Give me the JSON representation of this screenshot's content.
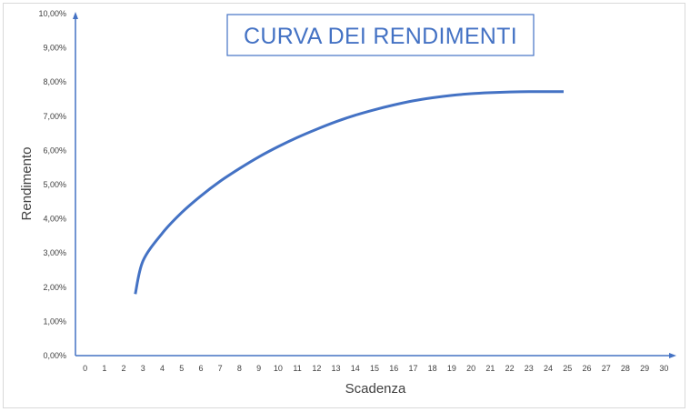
{
  "chart_data": {
    "type": "line",
    "title": "CURVA DEI RENDIMENTI",
    "xlabel": "Scadenza",
    "ylabel": "Rendimento",
    "xlim": [
      -0.5,
      30.5
    ],
    "ylim": [
      0,
      0.1
    ],
    "x_ticks": [
      "0",
      "1",
      "2",
      "3",
      "4",
      "5",
      "6",
      "7",
      "8",
      "9",
      "10",
      "11",
      "12",
      "13",
      "14",
      "15",
      "16",
      "17",
      "18",
      "19",
      "20",
      "21",
      "22",
      "23",
      "24",
      "25",
      "26",
      "27",
      "28",
      "29",
      "30"
    ],
    "y_ticks": [
      "0,00%",
      "1,00%",
      "2,00%",
      "3,00%",
      "4,00%",
      "5,00%",
      "6,00%",
      "7,00%",
      "8,00%",
      "9,00%",
      "10,00%"
    ],
    "grid": false,
    "series": [
      {
        "color": "#4472c4",
        "x": [
          2.6,
          3,
          4,
          5,
          6,
          7,
          8,
          9,
          10,
          11,
          12,
          13,
          14,
          15,
          16,
          17,
          18,
          19,
          20,
          21,
          22,
          23,
          24,
          24.8
        ],
        "y": [
          0.018,
          0.0277,
          0.0358,
          0.0418,
          0.0467,
          0.051,
          0.0547,
          0.0581,
          0.0611,
          0.0638,
          0.0662,
          0.0684,
          0.0703,
          0.0719,
          0.0733,
          0.0745,
          0.0754,
          0.0761,
          0.0766,
          0.0769,
          0.0771,
          0.0772,
          0.0772,
          0.0772
        ]
      }
    ]
  }
}
